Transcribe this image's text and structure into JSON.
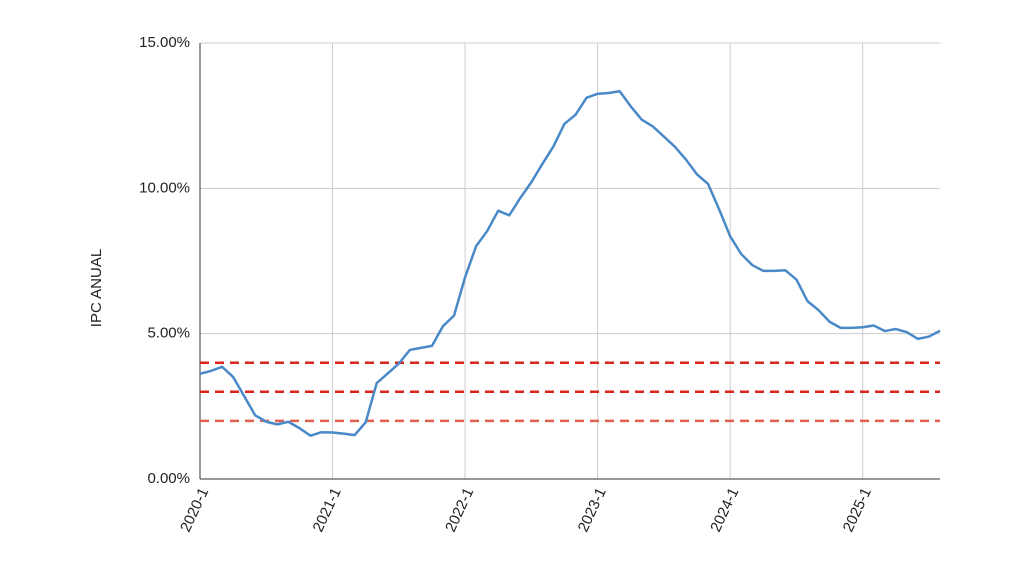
{
  "chart_data": {
    "type": "line",
    "y_label": "IPC ANUAL",
    "categories": [
      "2020-1",
      null,
      null,
      null,
      null,
      null,
      null,
      null,
      null,
      null,
      null,
      null,
      "2021-1",
      null,
      null,
      null,
      null,
      null,
      null,
      null,
      null,
      null,
      null,
      null,
      "2022-1",
      null,
      null,
      null,
      null,
      null,
      null,
      null,
      null,
      null,
      null,
      null,
      "2023-1",
      null,
      null,
      null,
      null,
      null,
      null,
      null,
      null,
      null,
      null,
      null,
      "2024-1",
      null,
      null,
      null,
      null,
      null,
      null,
      null,
      null,
      null,
      null,
      null,
      "2025-1",
      null,
      null,
      null,
      null,
      null,
      null,
      null
    ],
    "series": [
      {
        "color": "#4a89c8",
        "values": [
          3.62,
          3.72,
          3.86,
          3.51,
          2.85,
          2.19,
          1.97,
          1.88,
          1.97,
          1.75,
          1.49,
          1.61,
          1.6,
          1.56,
          1.51,
          1.95,
          3.3,
          3.63,
          3.97,
          4.44,
          4.51,
          4.58,
          5.26,
          5.62,
          6.94,
          8.01,
          8.53,
          9.23,
          9.07,
          9.67,
          10.21,
          10.84,
          11.44,
          12.22,
          12.53,
          13.12,
          13.25,
          13.28,
          13.34,
          12.82,
          12.36,
          12.13,
          11.78,
          11.43,
          10.99,
          10.48,
          10.15,
          9.28,
          8.35,
          7.74,
          7.36,
          7.16,
          7.16,
          7.18,
          6.86,
          6.12,
          5.81,
          5.41,
          5.2,
          5.2,
          5.22,
          5.28,
          5.09,
          5.16,
          5.05,
          4.82,
          4.9,
          5.1
        ]
      }
    ],
    "reference_lines": [
      {
        "value": 4,
        "color": "#d8261c"
      },
      {
        "value": 3,
        "color": "#d8261c"
      },
      {
        "value": 2,
        "color": "#e2604f"
      }
    ],
    "ylim": [
      0,
      15
    ],
    "yticks": [
      {
        "value": 0,
        "label": "0.00%"
      },
      {
        "value": 5,
        "label": "5.00%"
      },
      {
        "value": 10,
        "label": "10.00%"
      },
      {
        "value": 15,
        "label": "15.00%"
      }
    ],
    "grid": true
  }
}
